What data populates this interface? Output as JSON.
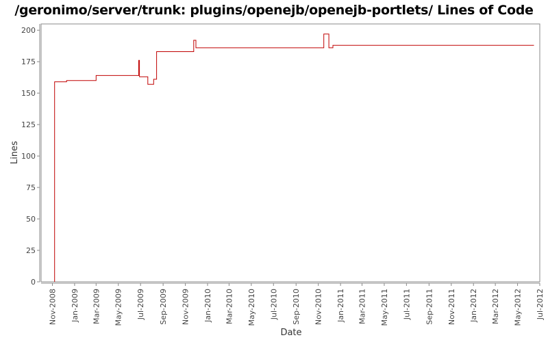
{
  "chart_data": {
    "type": "line",
    "title": "/geronimo/server/trunk: plugins/openejb/openejb-portlets/ Lines of Code",
    "xlabel": "Date",
    "ylabel": "Lines",
    "ylim": [
      0,
      205
    ],
    "xlim": [
      "2008-10-01",
      "2012-07-01"
    ],
    "yticks": [
      0,
      25,
      50,
      75,
      100,
      125,
      150,
      175,
      200
    ],
    "xticks": [
      {
        "label": "Nov-2008",
        "date": "2008-11-01"
      },
      {
        "label": "Jan-2009",
        "date": "2009-01-01"
      },
      {
        "label": "Mar-2009",
        "date": "2009-03-01"
      },
      {
        "label": "May-2009",
        "date": "2009-05-01"
      },
      {
        "label": "Jul-2009",
        "date": "2009-07-01"
      },
      {
        "label": "Sep-2009",
        "date": "2009-09-01"
      },
      {
        "label": "Nov-2009",
        "date": "2009-11-01"
      },
      {
        "label": "Jan-2010",
        "date": "2010-01-01"
      },
      {
        "label": "Mar-2010",
        "date": "2010-03-01"
      },
      {
        "label": "May-2010",
        "date": "2010-05-01"
      },
      {
        "label": "Jul-2010",
        "date": "2010-07-01"
      },
      {
        "label": "Sep-2010",
        "date": "2010-09-01"
      },
      {
        "label": "Nov-2010",
        "date": "2010-11-01"
      },
      {
        "label": "Jan-2011",
        "date": "2011-01-01"
      },
      {
        "label": "Mar-2011",
        "date": "2011-03-01"
      },
      {
        "label": "May-2011",
        "date": "2011-05-01"
      },
      {
        "label": "Jul-2011",
        "date": "2011-07-01"
      },
      {
        "label": "Sep-2011",
        "date": "2011-09-01"
      },
      {
        "label": "Nov-2011",
        "date": "2011-11-01"
      },
      {
        "label": "Jan-2012",
        "date": "2012-01-01"
      },
      {
        "label": "Mar-2012",
        "date": "2012-03-01"
      },
      {
        "label": "May-2012",
        "date": "2012-05-01"
      },
      {
        "label": "Jul-2012",
        "date": "2012-07-01"
      }
    ],
    "series": [
      {
        "color": "#c00000",
        "step": true,
        "points": [
          {
            "x": "2008-11-07",
            "y": 0
          },
          {
            "x": "2008-11-07",
            "y": 159
          },
          {
            "x": "2008-12-10",
            "y": 160
          },
          {
            "x": "2009-03-01",
            "y": 164
          },
          {
            "x": "2009-06-26",
            "y": 176
          },
          {
            "x": "2009-06-28",
            "y": 163
          },
          {
            "x": "2009-07-21",
            "y": 157
          },
          {
            "x": "2009-08-06",
            "y": 161
          },
          {
            "x": "2009-08-14",
            "y": 183
          },
          {
            "x": "2009-11-24",
            "y": 192
          },
          {
            "x": "2009-11-30",
            "y": 186
          },
          {
            "x": "2010-11-16",
            "y": 197
          },
          {
            "x": "2010-11-30",
            "y": 186
          },
          {
            "x": "2010-12-11",
            "y": 188
          },
          {
            "x": "2012-06-15",
            "y": 188
          }
        ]
      }
    ],
    "grid": false,
    "legend": "none"
  },
  "colors": {
    "line": "#c00000",
    "axis": "#888888",
    "plot_border": "#888888"
  }
}
